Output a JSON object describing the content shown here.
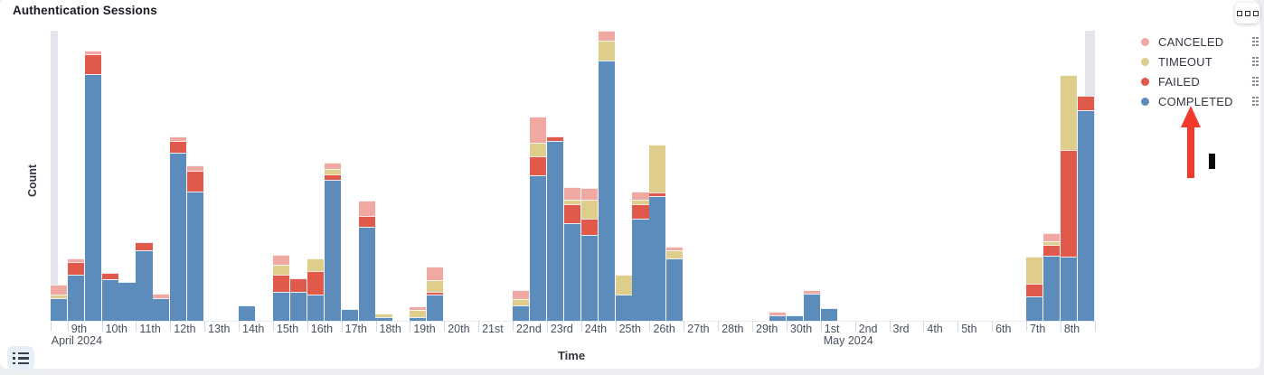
{
  "panel": {
    "title": "Authentication Sessions",
    "options_button": "panel-options-menu"
  },
  "legend": {
    "position": "right",
    "items": [
      {
        "label": "CANCELED",
        "color": "#F0A9A2"
      },
      {
        "label": "TIMEOUT",
        "color": "#DFCD8C"
      },
      {
        "label": "FAILED",
        "color": "#E0594A"
      },
      {
        "label": "COMPLETED",
        "color": "#5B8CBB"
      }
    ],
    "item_grip_icon": "drag-handle",
    "toggle_icon": "list"
  },
  "annotation": {
    "type": "red-arrow-pointing-up-plus-black-bar",
    "arrow_color": "#F2392C",
    "bar_color": "#0A0A0B",
    "points_at": "COMPLETED legend item"
  },
  "chart_data": {
    "type": "bar",
    "stacked": true,
    "title": "Authentication Sessions",
    "xlabel": "Time",
    "ylabel": "Count",
    "grid": false,
    "y_tick_labels_visible": false,
    "value_units": "relative count (no numeric y-axis ticks shown), half-day buckets",
    "ylim": [
      0,
      322
    ],
    "legend_position": "right",
    "series_order_bottom_to_top": [
      "COMPLETED",
      "FAILED",
      "TIMEOUT",
      "CANCELED"
    ],
    "colors": {
      "COMPLETED": "#5B8CBB",
      "FAILED": "#E0594A",
      "TIMEOUT": "#DFCD8C",
      "CANCELED": "#F0A9A2",
      "partial_bucket_marker": "#E4E5EA"
    },
    "x_tick_labels": [
      "9th",
      "10th",
      "11th",
      "12th",
      "13th",
      "14th",
      "15th",
      "16th",
      "17th",
      "18th",
      "19th",
      "20th",
      "21st",
      "22nd",
      "23rd",
      "24th",
      "25th",
      "26th",
      "27th",
      "28th",
      "29th",
      "30th",
      "1st",
      "2nd",
      "3rd",
      "4th",
      "5th",
      "6th",
      "7th",
      "8th"
    ],
    "month_labels": [
      {
        "text": "April 2024",
        "at_tick_index": 0
      },
      {
        "text": "May 2024",
        "at_tick_index": 22
      }
    ],
    "partial_bucket_markers": [
      {
        "edge": "left"
      },
      {
        "edge": "right"
      }
    ],
    "bars": [
      {
        "bucket": "Apr 8 PM",
        "COMPLETED": 25,
        "FAILED": 0,
        "TIMEOUT": 4,
        "CANCELED": 11
      },
      {
        "bucket": "Apr 9 AM",
        "COMPLETED": 51,
        "FAILED": 14,
        "TIMEOUT": 0,
        "CANCELED": 4
      },
      {
        "bucket": "Apr 9 PM",
        "COMPLETED": 273,
        "FAILED": 22,
        "TIMEOUT": 0,
        "CANCELED": 4
      },
      {
        "bucket": "Apr 10 AM",
        "COMPLETED": 46,
        "FAILED": 7,
        "TIMEOUT": 0,
        "CANCELED": 0
      },
      {
        "bucket": "Apr 10 PM",
        "COMPLETED": 43,
        "FAILED": 0,
        "TIMEOUT": 0,
        "CANCELED": 0
      },
      {
        "bucket": "Apr 11 AM",
        "COMPLETED": 78,
        "FAILED": 9,
        "TIMEOUT": 0,
        "CANCELED": 0
      },
      {
        "bucket": "Apr 11 PM",
        "COMPLETED": 25,
        "FAILED": 0,
        "TIMEOUT": 0,
        "CANCELED": 5
      },
      {
        "bucket": "Apr 12 AM",
        "COMPLETED": 186,
        "FAILED": 13,
        "TIMEOUT": 0,
        "CANCELED": 5
      },
      {
        "bucket": "Apr 12 PM",
        "COMPLETED": 143,
        "FAILED": 23,
        "TIMEOUT": 0,
        "CANCELED": 6
      },
      {
        "bucket": "Apr 13 AM",
        "COMPLETED": 0,
        "FAILED": 0,
        "TIMEOUT": 0,
        "CANCELED": 0
      },
      {
        "bucket": "Apr 13 PM",
        "COMPLETED": 0,
        "FAILED": 0,
        "TIMEOUT": 0,
        "CANCELED": 0
      },
      {
        "bucket": "Apr 14 AM",
        "COMPLETED": 17,
        "FAILED": 0,
        "TIMEOUT": 0,
        "CANCELED": 0
      },
      {
        "bucket": "Apr 14 PM",
        "COMPLETED": 0,
        "FAILED": 0,
        "TIMEOUT": 0,
        "CANCELED": 0
      },
      {
        "bucket": "Apr 15 AM",
        "COMPLETED": 32,
        "FAILED": 19,
        "TIMEOUT": 11,
        "CANCELED": 11
      },
      {
        "bucket": "Apr 15 PM",
        "COMPLETED": 32,
        "FAILED": 15,
        "TIMEOUT": 0,
        "CANCELED": 0
      },
      {
        "bucket": "Apr 16 AM",
        "COMPLETED": 29,
        "FAILED": 26,
        "TIMEOUT": 14,
        "CANCELED": 0
      },
      {
        "bucket": "Apr 16 PM",
        "COMPLETED": 156,
        "FAILED": 6,
        "TIMEOUT": 6,
        "CANCELED": 7
      },
      {
        "bucket": "Apr 17 AM",
        "COMPLETED": 13,
        "FAILED": 0,
        "TIMEOUT": 0,
        "CANCELED": 0
      },
      {
        "bucket": "Apr 17 PM",
        "COMPLETED": 104,
        "FAILED": 12,
        "TIMEOUT": 0,
        "CANCELED": 17
      },
      {
        "bucket": "Apr 18 AM",
        "COMPLETED": 4,
        "FAILED": 0,
        "TIMEOUT": 4,
        "CANCELED": 0
      },
      {
        "bucket": "Apr 18 PM",
        "COMPLETED": 0,
        "FAILED": 0,
        "TIMEOUT": 0,
        "CANCELED": 0
      },
      {
        "bucket": "Apr 19 AM",
        "COMPLETED": 4,
        "FAILED": 0,
        "TIMEOUT": 8,
        "CANCELED": 4
      },
      {
        "bucket": "Apr 19 PM",
        "COMPLETED": 29,
        "FAILED": 3,
        "TIMEOUT": 13,
        "CANCELED": 15
      },
      {
        "bucket": "Apr 20 AM",
        "COMPLETED": 0,
        "FAILED": 0,
        "TIMEOUT": 0,
        "CANCELED": 0
      },
      {
        "bucket": "Apr 20 PM",
        "COMPLETED": 0,
        "FAILED": 0,
        "TIMEOUT": 0,
        "CANCELED": 0
      },
      {
        "bucket": "Apr 21 AM",
        "COMPLETED": 0,
        "FAILED": 0,
        "TIMEOUT": 0,
        "CANCELED": 0
      },
      {
        "bucket": "Apr 21 PM",
        "COMPLETED": 0,
        "FAILED": 0,
        "TIMEOUT": 0,
        "CANCELED": 0
      },
      {
        "bucket": "Apr 22 AM",
        "COMPLETED": 17,
        "FAILED": 0,
        "TIMEOUT": 7,
        "CANCELED": 10
      },
      {
        "bucket": "Apr 22 PM",
        "COMPLETED": 161,
        "FAILED": 21,
        "TIMEOUT": 15,
        "CANCELED": 29
      },
      {
        "bucket": "Apr 23 AM",
        "COMPLETED": 199,
        "FAILED": 5,
        "TIMEOUT": 0,
        "CANCELED": 0
      },
      {
        "bucket": "Apr 23 PM",
        "COMPLETED": 108,
        "FAILED": 21,
        "TIMEOUT": 5,
        "CANCELED": 14
      },
      {
        "bucket": "Apr 24 AM",
        "COMPLETED": 95,
        "FAILED": 18,
        "TIMEOUT": 21,
        "CANCELED": 13
      },
      {
        "bucket": "Apr 24 PM",
        "COMPLETED": 288,
        "FAILED": 0,
        "TIMEOUT": 22,
        "CANCELED": 11
      },
      {
        "bucket": "Apr 25 AM",
        "COMPLETED": 29,
        "FAILED": 0,
        "TIMEOUT": 22,
        "CANCELED": 0
      },
      {
        "bucket": "Apr 25 PM",
        "COMPLETED": 113,
        "FAILED": 16,
        "TIMEOUT": 5,
        "CANCELED": 9
      },
      {
        "bucket": "Apr 26 AM",
        "COMPLETED": 138,
        "FAILED": 4,
        "TIMEOUT": 53,
        "CANCELED": 0
      },
      {
        "bucket": "Apr 26 PM",
        "COMPLETED": 69,
        "FAILED": 0,
        "TIMEOUT": 9,
        "CANCELED": 4
      },
      {
        "bucket": "Apr 27 AM",
        "COMPLETED": 0,
        "FAILED": 0,
        "TIMEOUT": 0,
        "CANCELED": 0
      },
      {
        "bucket": "Apr 27 PM",
        "COMPLETED": 0,
        "FAILED": 0,
        "TIMEOUT": 0,
        "CANCELED": 0
      },
      {
        "bucket": "Apr 28 AM",
        "COMPLETED": 0,
        "FAILED": 0,
        "TIMEOUT": 0,
        "CANCELED": 0
      },
      {
        "bucket": "Apr 28 PM",
        "COMPLETED": 0,
        "FAILED": 0,
        "TIMEOUT": 0,
        "CANCELED": 0
      },
      {
        "bucket": "Apr 29 AM",
        "COMPLETED": 0,
        "FAILED": 0,
        "TIMEOUT": 0,
        "CANCELED": 0
      },
      {
        "bucket": "Apr 29 PM",
        "COMPLETED": 6,
        "FAILED": 0,
        "TIMEOUT": 0,
        "CANCELED": 4
      },
      {
        "bucket": "Apr 30 AM",
        "COMPLETED": 6,
        "FAILED": 0,
        "TIMEOUT": 0,
        "CANCELED": 0
      },
      {
        "bucket": "Apr 30 PM",
        "COMPLETED": 30,
        "FAILED": 0,
        "TIMEOUT": 0,
        "CANCELED": 4
      },
      {
        "bucket": "May 1 AM",
        "COMPLETED": 14,
        "FAILED": 0,
        "TIMEOUT": 0,
        "CANCELED": 0
      },
      {
        "bucket": "May 1 PM",
        "COMPLETED": 0,
        "FAILED": 0,
        "TIMEOUT": 0,
        "CANCELED": 0
      },
      {
        "bucket": "May 2 AM",
        "COMPLETED": 0,
        "FAILED": 0,
        "TIMEOUT": 0,
        "CANCELED": 0
      },
      {
        "bucket": "May 2 PM",
        "COMPLETED": 0,
        "FAILED": 0,
        "TIMEOUT": 0,
        "CANCELED": 0
      },
      {
        "bucket": "May 3 AM",
        "COMPLETED": 0,
        "FAILED": 0,
        "TIMEOUT": 0,
        "CANCELED": 0
      },
      {
        "bucket": "May 3 PM",
        "COMPLETED": 0,
        "FAILED": 0,
        "TIMEOUT": 0,
        "CANCELED": 0
      },
      {
        "bucket": "May 4 AM",
        "COMPLETED": 0,
        "FAILED": 0,
        "TIMEOUT": 0,
        "CANCELED": 0
      },
      {
        "bucket": "May 4 PM",
        "COMPLETED": 0,
        "FAILED": 0,
        "TIMEOUT": 0,
        "CANCELED": 0
      },
      {
        "bucket": "May 5 AM",
        "COMPLETED": 0,
        "FAILED": 0,
        "TIMEOUT": 0,
        "CANCELED": 0
      },
      {
        "bucket": "May 5 PM",
        "COMPLETED": 0,
        "FAILED": 0,
        "TIMEOUT": 0,
        "CANCELED": 0
      },
      {
        "bucket": "May 6 AM",
        "COMPLETED": 0,
        "FAILED": 0,
        "TIMEOUT": 0,
        "CANCELED": 0
      },
      {
        "bucket": "May 6 PM",
        "COMPLETED": 0,
        "FAILED": 0,
        "TIMEOUT": 0,
        "CANCELED": 0
      },
      {
        "bucket": "May 7 AM",
        "COMPLETED": 27,
        "FAILED": 14,
        "TIMEOUT": 30,
        "CANCELED": 0
      },
      {
        "bucket": "May 7 PM",
        "COMPLETED": 72,
        "FAILED": 12,
        "TIMEOUT": 4,
        "CANCELED": 9
      },
      {
        "bucket": "May 8 AM",
        "COMPLETED": 71,
        "FAILED": 118,
        "TIMEOUT": 83,
        "CANCELED": 0
      },
      {
        "bucket": "May 8 PM",
        "COMPLETED": 233,
        "FAILED": 16,
        "TIMEOUT": 0,
        "CANCELED": 0
      }
    ]
  }
}
